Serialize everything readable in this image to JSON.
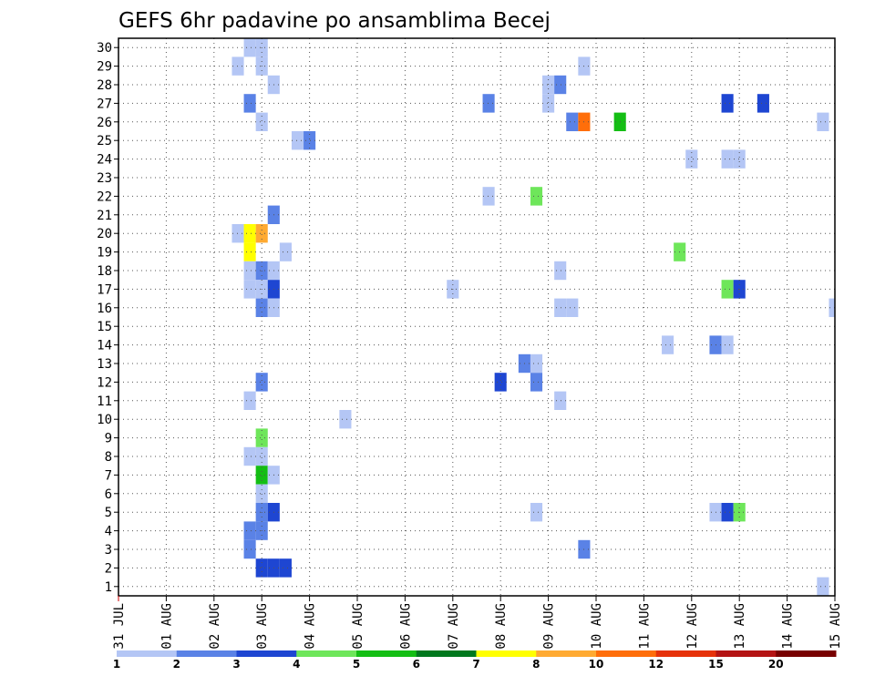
{
  "chart_data": {
    "type": "heatmap",
    "title": "GEFS 6hr padavine po ansamblima Becej",
    "xlabel": "",
    "ylabel": "",
    "x_start_day": 0,
    "x_end_day": 15,
    "x_tick_labels": [
      "31 JUL",
      "01 AUG",
      "02 AUG",
      "03 AUG",
      "04 AUG",
      "05 AUG",
      "06 AUG",
      "07 AUG",
      "08 AUG",
      "09 AUG",
      "10 AUG",
      "11 AUG",
      "12 AUG",
      "13 AUG",
      "14 AUG",
      "15 AUG"
    ],
    "y_tick_labels": [
      "1",
      "2",
      "3",
      "4",
      "5",
      "6",
      "7",
      "8",
      "9",
      "10",
      "11",
      "12",
      "13",
      "14",
      "15",
      "16",
      "17",
      "18",
      "19",
      "20",
      "21",
      "22",
      "23",
      "24",
      "25",
      "26",
      "27",
      "28",
      "29",
      "30"
    ],
    "ylim": [
      0.5,
      30.5
    ],
    "step_hours": 6,
    "grid": true,
    "colorbar": {
      "levels": [
        "1",
        "2",
        "3",
        "4",
        "5",
        "6",
        "7",
        "8",
        "10",
        "12",
        "15",
        "20"
      ],
      "colors": [
        "#b4c6f5",
        "#5a82e6",
        "#1e46d2",
        "#6ee65a",
        "#14be14",
        "#00781e",
        "#ffff00",
        "#ffaa32",
        "#ff6e0a",
        "#e6320a",
        "#b41414",
        "#780000"
      ]
    },
    "cells": [
      {
        "m": 30,
        "d": "2025-08-02 18Z",
        "c": 0
      },
      {
        "m": 30,
        "d": "2025-08-03 00Z",
        "c": 0
      },
      {
        "m": 29,
        "d": "2025-08-02 12Z",
        "c": 0
      },
      {
        "m": 29,
        "d": "2025-08-03 00Z",
        "c": 0
      },
      {
        "m": 29,
        "d": "2025-08-09 18Z",
        "c": 0
      },
      {
        "m": 28,
        "d": "2025-08-03 06Z",
        "c": 0
      },
      {
        "m": 28,
        "d": "2025-08-09 00Z",
        "c": 0
      },
      {
        "m": 28,
        "d": "2025-08-09 06Z",
        "c": 1
      },
      {
        "m": 27,
        "d": "2025-08-02 18Z",
        "c": 1
      },
      {
        "m": 27,
        "d": "2025-08-07 18Z",
        "c": 1
      },
      {
        "m": 27,
        "d": "2025-08-09 00Z",
        "c": 0
      },
      {
        "m": 27,
        "d": "2025-08-12 18Z",
        "c": 2
      },
      {
        "m": 27,
        "d": "2025-08-13 12Z",
        "c": 2
      },
      {
        "m": 26,
        "d": "2025-08-03 00Z",
        "c": 0
      },
      {
        "m": 26,
        "d": "2025-08-09 12Z",
        "c": 1
      },
      {
        "m": 26,
        "d": "2025-08-09 18Z",
        "c": 8
      },
      {
        "m": 26,
        "d": "2025-08-10 12Z",
        "c": 4
      },
      {
        "m": 26,
        "d": "2025-08-14 18Z",
        "c": 0
      },
      {
        "m": 25,
        "d": "2025-08-03 18Z",
        "c": 0
      },
      {
        "m": 25,
        "d": "2025-08-04 00Z",
        "c": 1
      },
      {
        "m": 24,
        "d": "2025-08-12 00Z",
        "c": 0
      },
      {
        "m": 24,
        "d": "2025-08-12 18Z",
        "c": 0
      },
      {
        "m": 24,
        "d": "2025-08-13 00Z",
        "c": 0
      },
      {
        "m": 22,
        "d": "2025-08-07 18Z",
        "c": 0
      },
      {
        "m": 22,
        "d": "2025-08-08 18Z",
        "c": 3
      },
      {
        "m": 21,
        "d": "2025-08-03 06Z",
        "c": 1
      },
      {
        "m": 20,
        "d": "2025-08-02 12Z",
        "c": 0
      },
      {
        "m": 20,
        "d": "2025-08-02 18Z",
        "c": 6
      },
      {
        "m": 20,
        "d": "2025-08-03 00Z",
        "c": 7
      },
      {
        "m": 19,
        "d": "2025-08-02 18Z",
        "c": 6
      },
      {
        "m": 19,
        "d": "2025-08-03 12Z",
        "c": 0
      },
      {
        "m": 19,
        "d": "2025-08-11 18Z",
        "c": 3
      },
      {
        "m": 18,
        "d": "2025-08-02 18Z",
        "c": 0
      },
      {
        "m": 18,
        "d": "2025-08-03 00Z",
        "c": 1
      },
      {
        "m": 18,
        "d": "2025-08-03 06Z",
        "c": 0
      },
      {
        "m": 18,
        "d": "2025-08-09 06Z",
        "c": 0
      },
      {
        "m": 17,
        "d": "2025-08-02 18Z",
        "c": 0
      },
      {
        "m": 17,
        "d": "2025-08-03 00Z",
        "c": 0
      },
      {
        "m": 17,
        "d": "2025-08-03 06Z",
        "c": 2
      },
      {
        "m": 17,
        "d": "2025-08-07 00Z",
        "c": 0
      },
      {
        "m": 17,
        "d": "2025-08-12 18Z",
        "c": 3
      },
      {
        "m": 17,
        "d": "2025-08-13 00Z",
        "c": 2
      },
      {
        "m": 16,
        "d": "2025-08-03 00Z",
        "c": 1
      },
      {
        "m": 16,
        "d": "2025-08-03 06Z",
        "c": 0
      },
      {
        "m": 16,
        "d": "2025-08-09 06Z",
        "c": 0
      },
      {
        "m": 16,
        "d": "2025-08-09 12Z",
        "c": 0
      },
      {
        "m": 16,
        "d": "2025-08-15 00Z",
        "c": 0
      },
      {
        "m": 14,
        "d": "2025-08-11 12Z",
        "c": 0
      },
      {
        "m": 14,
        "d": "2025-08-12 12Z",
        "c": 1
      },
      {
        "m": 14,
        "d": "2025-08-12 18Z",
        "c": 0
      },
      {
        "m": 13,
        "d": "2025-08-08 12Z",
        "c": 1
      },
      {
        "m": 13,
        "d": "2025-08-08 18Z",
        "c": 0
      },
      {
        "m": 12,
        "d": "2025-08-03 00Z",
        "c": 1
      },
      {
        "m": 12,
        "d": "2025-08-08 00Z",
        "c": 2
      },
      {
        "m": 12,
        "d": "2025-08-08 18Z",
        "c": 1
      },
      {
        "m": 11,
        "d": "2025-08-02 18Z",
        "c": 0
      },
      {
        "m": 11,
        "d": "2025-08-09 06Z",
        "c": 0
      },
      {
        "m": 10,
        "d": "2025-08-04 18Z",
        "c": 0
      },
      {
        "m": 9,
        "d": "2025-08-03 00Z",
        "c": 3
      },
      {
        "m": 8,
        "d": "2025-08-02 18Z",
        "c": 0
      },
      {
        "m": 8,
        "d": "2025-08-03 00Z",
        "c": 0
      },
      {
        "m": 7,
        "d": "2025-08-03 00Z",
        "c": 4
      },
      {
        "m": 7,
        "d": "2025-08-03 06Z",
        "c": 0
      },
      {
        "m": 6,
        "d": "2025-08-03 00Z",
        "c": 0
      },
      {
        "m": 5,
        "d": "2025-08-03 00Z",
        "c": 1
      },
      {
        "m": 5,
        "d": "2025-08-03 06Z",
        "c": 2
      },
      {
        "m": 5,
        "d": "2025-08-08 18Z",
        "c": 0
      },
      {
        "m": 5,
        "d": "2025-08-12 12Z",
        "c": 0
      },
      {
        "m": 5,
        "d": "2025-08-12 18Z",
        "c": 2
      },
      {
        "m": 5,
        "d": "2025-08-13 00Z",
        "c": 3
      },
      {
        "m": 4,
        "d": "2025-08-02 18Z",
        "c": 1
      },
      {
        "m": 4,
        "d": "2025-08-03 00Z",
        "c": 1
      },
      {
        "m": 3,
        "d": "2025-08-02 18Z",
        "c": 1
      },
      {
        "m": 3,
        "d": "2025-08-09 18Z",
        "c": 1
      },
      {
        "m": 2,
        "d": "2025-08-03 00Z",
        "c": 2
      },
      {
        "m": 2,
        "d": "2025-08-03 06Z",
        "c": 2
      },
      {
        "m": 2,
        "d": "2025-08-03 12Z",
        "c": 2
      },
      {
        "m": 1,
        "d": "2025-08-14 18Z",
        "c": 0
      }
    ]
  }
}
